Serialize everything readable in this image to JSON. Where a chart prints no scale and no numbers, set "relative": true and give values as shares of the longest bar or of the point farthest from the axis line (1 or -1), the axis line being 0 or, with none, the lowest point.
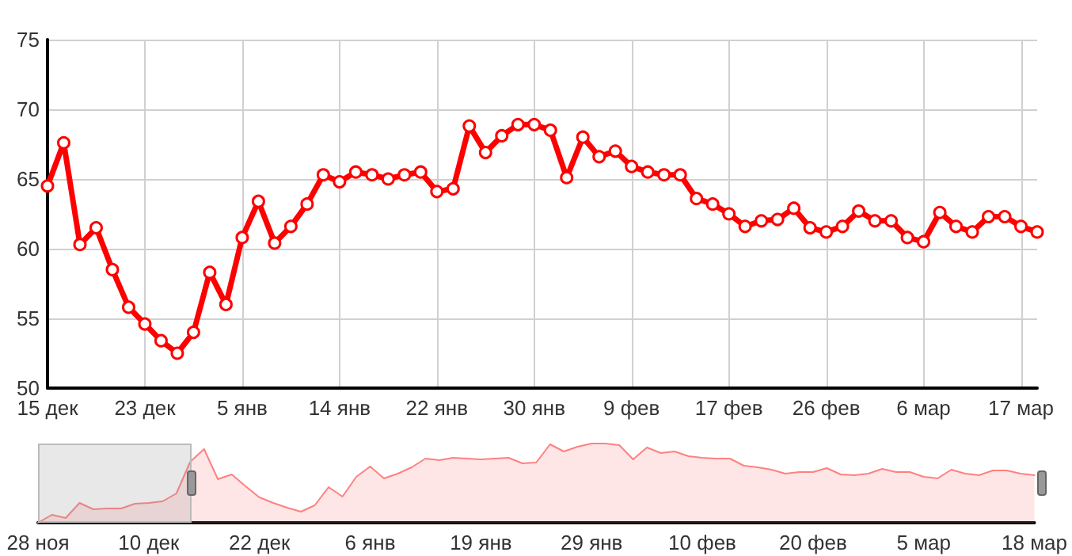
{
  "chart_data": [
    {
      "type": "line",
      "categories": [
        "15 дек",
        null,
        null,
        null,
        null,
        null,
        "23 дек",
        null,
        null,
        null,
        null,
        null,
        "5 янв",
        null,
        null,
        null,
        null,
        null,
        "14 янв",
        null,
        null,
        null,
        null,
        null,
        "22 янв",
        null,
        null,
        null,
        null,
        null,
        "30 янв",
        null,
        null,
        null,
        null,
        null,
        "9 фев",
        null,
        null,
        null,
        null,
        null,
        "17 фев",
        null,
        null,
        null,
        null,
        null,
        "26 фев",
        null,
        null,
        null,
        null,
        null,
        "6 мар",
        null,
        null,
        null,
        null,
        null,
        "17 мар",
        null
      ],
      "series": [
        {
          "color": "#ff0000",
          "values": [
            64.5,
            67.6,
            60.3,
            61.5,
            58.5,
            55.8,
            54.6,
            53.4,
            52.5,
            54.0,
            58.3,
            56.0,
            60.8,
            63.4,
            60.4,
            61.6,
            63.2,
            65.3,
            64.8,
            65.5,
            65.3,
            65.0,
            65.3,
            65.5,
            64.1,
            64.3,
            68.8,
            66.9,
            68.1,
            68.9,
            68.9,
            68.5,
            65.1,
            68.0,
            66.6,
            67.0,
            65.9,
            65.5,
            65.3,
            65.3,
            63.6,
            63.2,
            62.5,
            61.6,
            62.0,
            62.1,
            62.9,
            61.5,
            61.2,
            61.6,
            62.7,
            62.0,
            62.0,
            60.8,
            60.5,
            62.6,
            61.6,
            61.2,
            62.3,
            62.3,
            61.6,
            61.2
          ]
        }
      ],
      "ylim": [
        50,
        75
      ],
      "yticks": [
        50,
        55,
        60,
        65,
        70,
        75
      ],
      "grid": true,
      "marker": "circle",
      "line_style": "solid"
    },
    {
      "type": "area",
      "relative": true,
      "tick_labels": "x",
      "categories": [
        "28 ноя",
        null,
        null,
        null,
        null,
        null,
        null,
        null,
        "10 дек",
        null,
        null,
        null,
        null,
        null,
        null,
        null,
        "22 дек",
        null,
        null,
        null,
        null,
        null,
        null,
        null,
        "6 янв",
        null,
        null,
        null,
        null,
        null,
        null,
        null,
        "19 янв",
        null,
        null,
        null,
        null,
        null,
        null,
        null,
        "29 янв",
        null,
        null,
        null,
        null,
        null,
        null,
        null,
        "10 фев",
        null,
        null,
        null,
        null,
        null,
        null,
        null,
        "20 фев",
        null,
        null,
        null,
        null,
        null,
        null,
        null,
        "5 мар",
        null,
        null,
        null,
        null,
        null,
        null,
        null,
        "18 мар"
      ],
      "series": [
        {
          "color": "#ff8080",
          "values": [
            0,
            0.1,
            0.06,
            0.25,
            0.17,
            0.18,
            0.18,
            0.24,
            0.25,
            0.27,
            0.37,
            0.77,
            0.93,
            0.55,
            0.61,
            0.46,
            0.32,
            0.25,
            0.19,
            0.14,
            0.22,
            0.45,
            0.33,
            0.58,
            0.71,
            0.56,
            0.62,
            0.7,
            0.81,
            0.79,
            0.82,
            0.81,
            0.8,
            0.81,
            0.82,
            0.75,
            0.76,
            0.99,
            0.9,
            0.96,
            1,
            1,
            0.98,
            0.8,
            0.95,
            0.88,
            0.9,
            0.84,
            0.82,
            0.81,
            0.81,
            0.72,
            0.7,
            0.67,
            0.62,
            0.64,
            0.64,
            0.69,
            0.61,
            0.6,
            0.62,
            0.68,
            0.64,
            0.64,
            0.58,
            0.56,
            0.67,
            0.62,
            0.6,
            0.66,
            0.66,
            0.62,
            0.6
          ]
        }
      ],
      "grid": false,
      "marker": "none",
      "line_style": "solid"
    }
  ]
}
